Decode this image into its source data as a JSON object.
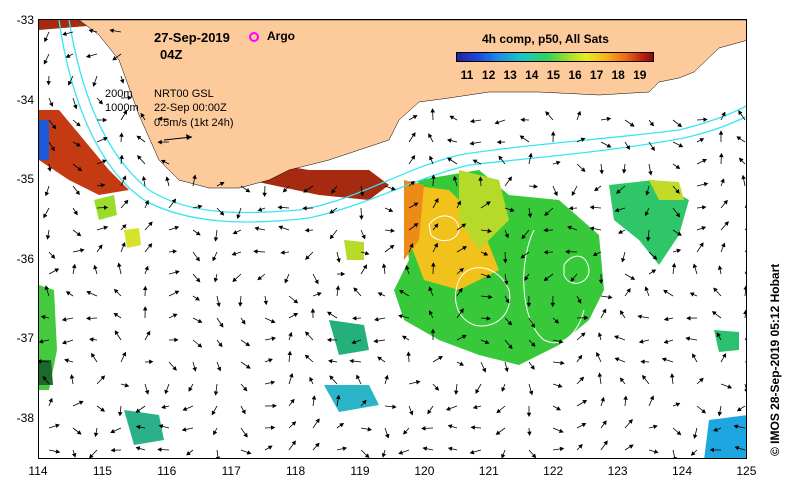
{
  "header": {
    "date": "27-Sep-2019",
    "time": "04Z",
    "argo_label": "Argo"
  },
  "colorbar": {
    "title": "4h comp, p50, All Sats",
    "ticks": [
      "11",
      "12",
      "13",
      "14",
      "15",
      "16",
      "17",
      "18",
      "19"
    ]
  },
  "legend": {
    "isobath_200": "200m",
    "isobath_1000": "1000m",
    "source": "NRT00 GSL",
    "source_date": "22-Sep 00:00Z",
    "vector_scale": "0.5m/s (1kt 24h)"
  },
  "axes": {
    "y_ticks": [
      "-33",
      "-34",
      "-35",
      "-36",
      "-37",
      "-38"
    ],
    "x_ticks": [
      "114",
      "115",
      "116",
      "117",
      "118",
      "119",
      "120",
      "121",
      "122",
      "123",
      "124",
      "125"
    ]
  },
  "credit": "© IMOS 28-Sep-2019 05:12 Hobart",
  "colors": {
    "land": "#fdca9b",
    "isobath": "#37e6f0",
    "argo": "#ff00ff"
  }
}
